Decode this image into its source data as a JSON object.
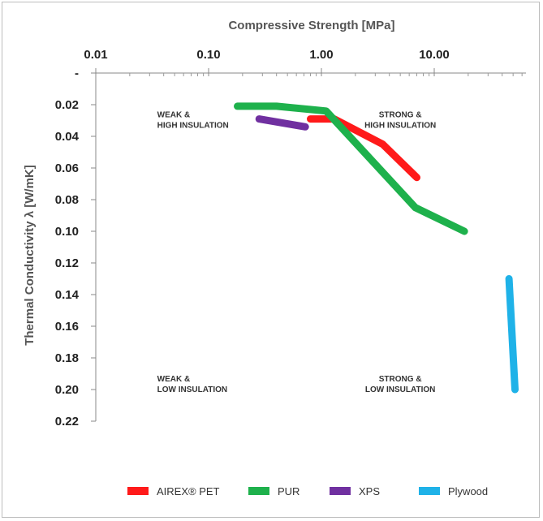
{
  "chart_data": {
    "type": "line",
    "xlabel": "Compressive Strength [MPa]",
    "ylabel": "Thermal Conductivity λ [W/mK]",
    "x_scale": "log",
    "x_axis_position": "top",
    "y_inverted": true,
    "xlim": [
      0.01,
      60
    ],
    "ylim": [
      0.0,
      0.22
    ],
    "x_ticks": [
      "0.01",
      "0.10",
      "1.00",
      "10.00"
    ],
    "x_tick_values": [
      0.01,
      0.1,
      1.0,
      10.0
    ],
    "y_ticks": [
      "-",
      "0.02",
      "0.04",
      "0.06",
      "0.08",
      "0.10",
      "0.12",
      "0.14",
      "0.16",
      "0.18",
      "0.20",
      "0.22"
    ],
    "y_tick_values": [
      0.0,
      0.02,
      0.04,
      0.06,
      0.08,
      0.1,
      0.12,
      0.14,
      0.16,
      0.18,
      0.2,
      0.22
    ],
    "grid": false,
    "legend_position": "bottom",
    "annotations": [
      {
        "line1": "WEAK &",
        "line2": "HIGH INSULATION",
        "x": 0.035,
        "y": 0.033
      },
      {
        "line1": "STRONG &",
        "line2": "HIGH INSULATION",
        "x": 5.0,
        "y": 0.033
      },
      {
        "line1": "WEAK &",
        "line2": "LOW INSULATION",
        "x": 0.035,
        "y": 0.2
      },
      {
        "line1": "STRONG &",
        "line2": "LOW INSULATION",
        "x": 5.0,
        "y": 0.2
      }
    ],
    "series": [
      {
        "name": "AIREX® PET",
        "color": "#ff1a1a",
        "points": [
          [
            0.8,
            0.029
          ],
          [
            1.3,
            0.029
          ],
          [
            3.5,
            0.045
          ],
          [
            7.0,
            0.066
          ]
        ]
      },
      {
        "name": "PUR",
        "color": "#1eb14c",
        "points": [
          [
            0.18,
            0.021
          ],
          [
            0.4,
            0.021
          ],
          [
            1.1,
            0.024
          ],
          [
            6.8,
            0.085
          ],
          [
            18.5,
            0.1
          ]
        ]
      },
      {
        "name": "XPS",
        "color": "#7030a0",
        "points": [
          [
            0.28,
            0.029
          ],
          [
            0.72,
            0.034
          ]
        ]
      },
      {
        "name": "Plywood",
        "color": "#1fb2e8",
        "points": [
          [
            46.0,
            0.13
          ],
          [
            52.0,
            0.2
          ]
        ]
      }
    ]
  }
}
